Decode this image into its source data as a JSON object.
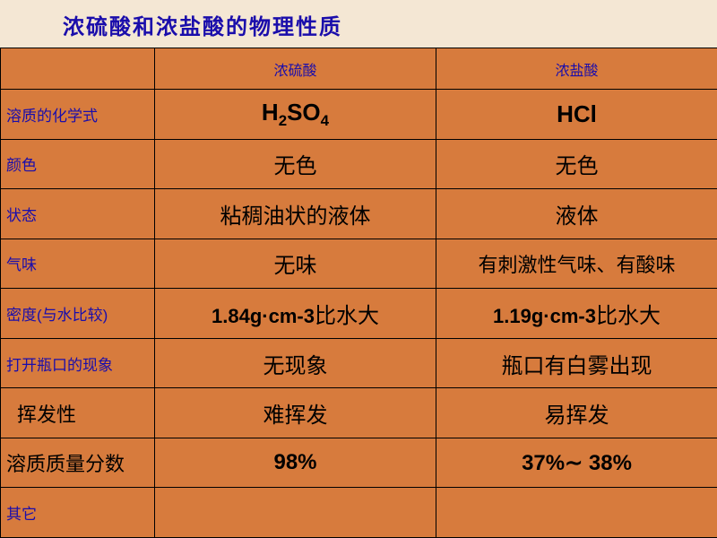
{
  "title": "浓硫酸和浓盐酸的物理性质",
  "colors": {
    "page_bg": "#f4e7d4",
    "cell_bg": "#d77b3d",
    "border": "#000000",
    "header_text": "#1a0dab",
    "body_text": "#000000"
  },
  "columns": {
    "property": "",
    "acid1": "浓硫酸",
    "acid2": "浓盐酸"
  },
  "rows": {
    "formula": {
      "label": "溶质的化学式",
      "acid1_html": "H<sub>2</sub>SO<sub>4</sub>",
      "acid2_html": "HCl"
    },
    "color": {
      "label": "颜色",
      "acid1": "无色",
      "acid2": "无色"
    },
    "state": {
      "label": "状态",
      "acid1": "粘稠油状的液体",
      "acid2": "液体"
    },
    "odor": {
      "label": "气味",
      "acid1": "无味",
      "acid2": "有刺激性气味、有酸味"
    },
    "density": {
      "label": "密度(与水比较)",
      "acid1_num": "1.84g·cm-3",
      "acid1_tail": "比水大",
      "acid2_num": "1.19g·cm-3",
      "acid2_tail": "比水大"
    },
    "openBottle": {
      "label": "打开瓶口的现象",
      "acid1": "无现象",
      "acid2": "瓶口有白雾出现"
    },
    "volatility": {
      "label": "挥发性",
      "acid1": "难挥发",
      "acid2": "易挥发"
    },
    "massFrac": {
      "label": "溶质质量分数",
      "acid1": "98%",
      "acid2": "37%∼ 38%"
    },
    "other": {
      "label": "其它",
      "acid1": "",
      "acid2": ""
    }
  },
  "fonts": {
    "title_size": 24,
    "header_size": 16,
    "rowlabel_size": 17,
    "rowlabel_lg_size": 22,
    "cell_size": 24,
    "formula_size": 26,
    "density_size": 22
  }
}
